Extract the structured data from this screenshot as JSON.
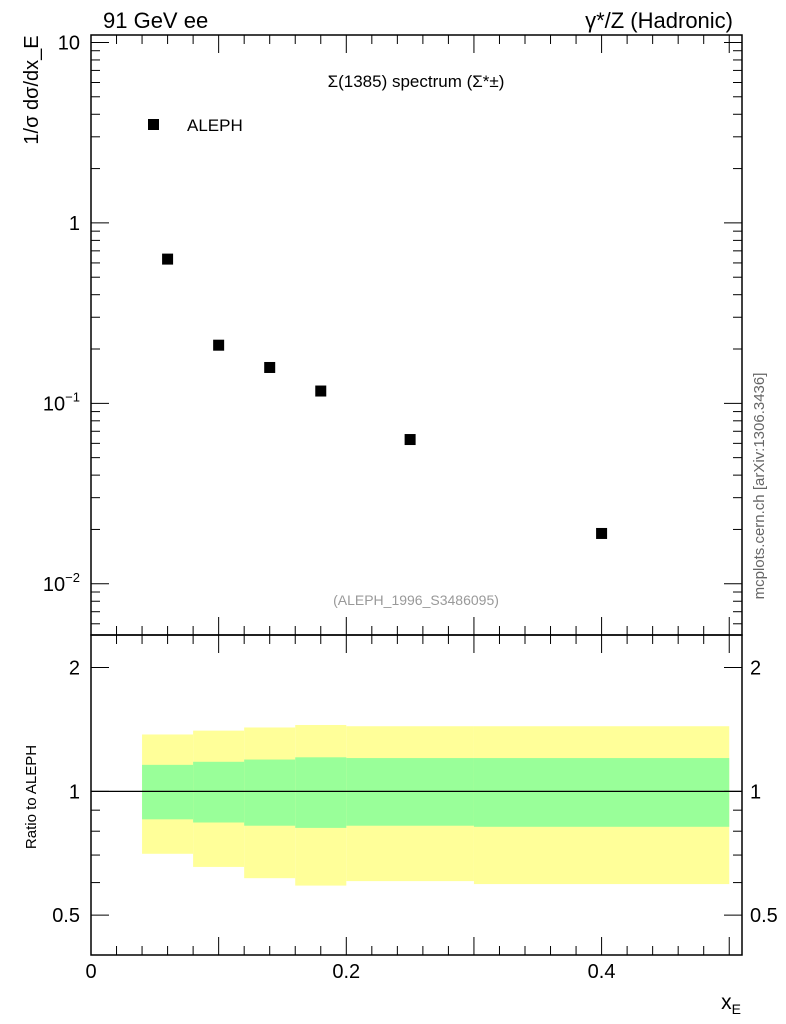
{
  "header": {
    "left_label": "91 GeV ee",
    "right_label": "γ*/Z (Hadronic)"
  },
  "watermark": "mcplots.cern.ch [arXiv:1306.3436]",
  "analysis_id": "(ALEPH_1996_S3486095)",
  "colors": {
    "band_outer": "#ffff99",
    "band_inner": "#99ff99",
    "marker": "#000000",
    "id_text": "#999999"
  },
  "chart_data": [
    {
      "type": "scatter",
      "title": "Σ(1385) spectrum (Σ*±)",
      "ylabel": "1/σ dσ/dx_E",
      "yscale": "log",
      "ylim": [
        0.0052,
        11.0
      ],
      "xlim": [
        0,
        0.51
      ],
      "yticks": [
        {
          "value": 10,
          "label": "10"
        },
        {
          "value": 1,
          "label": "1"
        },
        {
          "value": 0.1,
          "label": "10",
          "exp": "−1"
        },
        {
          "value": 0.01,
          "label": "10",
          "exp": "−2"
        }
      ],
      "legend": {
        "position": "top-left",
        "entries": [
          "ALEPH"
        ]
      },
      "series": [
        {
          "name": "ALEPH",
          "x": [
            0.06,
            0.1,
            0.14,
            0.18,
            0.25,
            0.4
          ],
          "y": [
            0.63,
            0.21,
            0.158,
            0.117,
            0.063,
            0.019
          ]
        }
      ]
    },
    {
      "type": "area",
      "ylabel": "Ratio to ALEPH",
      "yscale": "log",
      "ylim": [
        0.4,
        2.4
      ],
      "xlim": [
        0,
        0.51
      ],
      "xlabel": "x_E",
      "yticks": [
        {
          "value": 2,
          "label": "2"
        },
        {
          "value": 1,
          "label": "1"
        },
        {
          "value": 0.5,
          "label": "0.5"
        }
      ],
      "xticks": [
        {
          "value": 0,
          "label": "0"
        },
        {
          "value": 0.2,
          "label": "0.2"
        },
        {
          "value": 0.4,
          "label": "0.4"
        }
      ],
      "reference_line": 1,
      "bins": [
        {
          "x0": 0.04,
          "x1": 0.08,
          "outer": [
            0.705,
            1.375
          ],
          "inner": [
            0.855,
            1.16
          ]
        },
        {
          "x0": 0.08,
          "x1": 0.12,
          "outer": [
            0.655,
            1.405
          ],
          "inner": [
            0.84,
            1.18
          ]
        },
        {
          "x0": 0.12,
          "x1": 0.16,
          "outer": [
            0.615,
            1.43
          ],
          "inner": [
            0.825,
            1.195
          ]
        },
        {
          "x0": 0.16,
          "x1": 0.2,
          "outer": [
            0.59,
            1.45
          ],
          "inner": [
            0.815,
            1.21
          ]
        },
        {
          "x0": 0.2,
          "x1": 0.3,
          "outer": [
            0.605,
            1.44
          ],
          "inner": [
            0.825,
            1.205
          ]
        },
        {
          "x0": 0.3,
          "x1": 0.5,
          "outer": [
            0.595,
            1.44
          ],
          "inner": [
            0.82,
            1.205
          ]
        }
      ]
    }
  ]
}
